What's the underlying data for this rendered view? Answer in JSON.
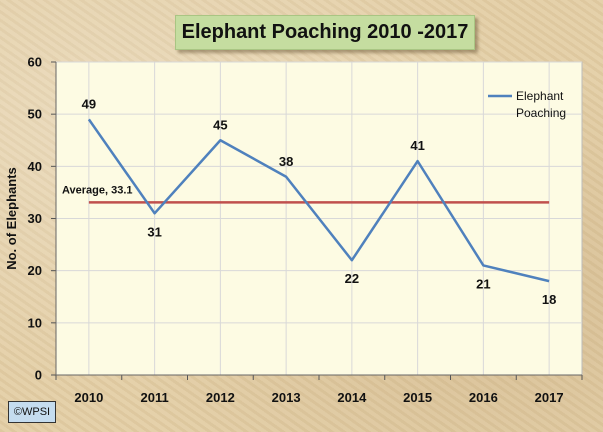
{
  "title": "Elephant Poaching 2010 -2017",
  "copyright": "©WPSI",
  "chart_data": {
    "type": "line",
    "title": "Elephant Poaching 2010 -2017",
    "xlabel": "",
    "ylabel": "No. of Elephants",
    "categories": [
      "2010",
      "2011",
      "2012",
      "2013",
      "2014",
      "2015",
      "2016",
      "2017"
    ],
    "ylim": [
      0,
      60
    ],
    "yticks": [
      0,
      10,
      20,
      30,
      40,
      50,
      60
    ],
    "grid": true,
    "legend_position": "top-right",
    "series": [
      {
        "name": "Elephant Poaching",
        "values": [
          49,
          31,
          45,
          38,
          22,
          41,
          21,
          18
        ],
        "color": "#4f81bd"
      }
    ],
    "average": {
      "label": "Average, 33.1",
      "value": 33.1,
      "color": "#c0504d"
    }
  },
  "colors": {
    "plot_background": "#fdfbe3",
    "grid": "#d8d8d8",
    "title_background": "#c5dda0"
  }
}
